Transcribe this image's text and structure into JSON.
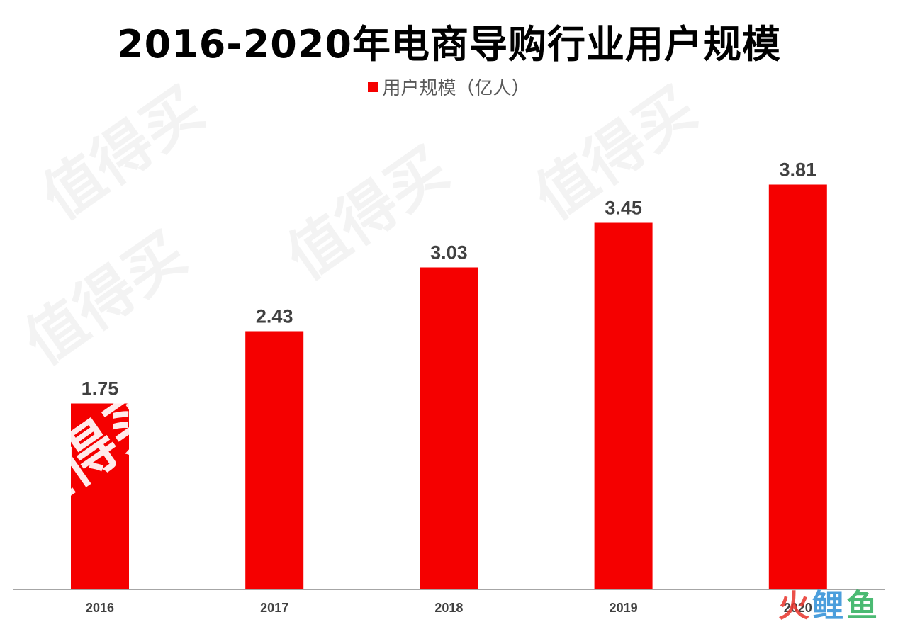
{
  "chart_data": {
    "type": "bar",
    "title": "2016-2020年电商导购行业用户规模",
    "categories": [
      "2016",
      "2017",
      "2018",
      "2019",
      "2020"
    ],
    "series": [
      {
        "name": "用户规模（亿人）",
        "values": [
          1.75,
          2.43,
          3.03,
          3.45,
          3.81
        ]
      }
    ],
    "ylim": [
      0,
      4.0
    ],
    "grid": false,
    "legend_position": "top-center",
    "bar_color": "#F50000",
    "axis_color": "#A6A6A6",
    "label_color": "#404040"
  },
  "watermarks": {
    "text": "值得买",
    "logo_text": "火鲤鱼",
    "logo_colors": [
      "#E8332A",
      "#2C8DD6",
      "#2CAE5A"
    ]
  }
}
